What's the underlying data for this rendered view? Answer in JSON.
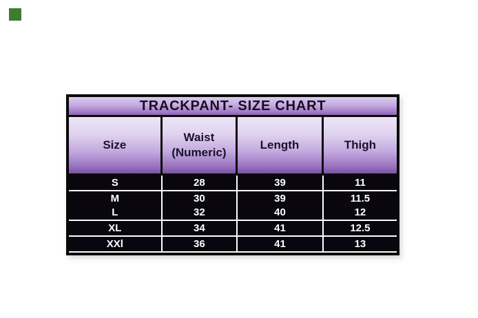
{
  "page": {
    "background_color": "#ffffff",
    "green_square_color": "#3e7c31"
  },
  "table": {
    "title": "TRACKPANT- SIZE CHART",
    "header": {
      "size": "Size",
      "waist_line1": "Waist",
      "waist_line2": "(Numeric)",
      "length": "Length",
      "thigh": "Thigh"
    },
    "rows": [
      {
        "size": "S",
        "waist": "28",
        "length": "39",
        "thigh": "11"
      },
      {
        "size": "M",
        "waist": "30",
        "length": "39",
        "thigh": "11.5"
      },
      {
        "size": "L",
        "waist": "32",
        "length": "40",
        "thigh": "12"
      },
      {
        "size": "XL",
        "waist": "34",
        "length": "41",
        "thigh": "12.5"
      },
      {
        "size": "XXl",
        "waist": "36",
        "length": "41",
        "thigh": "13"
      }
    ],
    "colors": {
      "title_gradient_top": "#d9cbec",
      "title_gradient_bottom": "#8d66b3",
      "header_gradient_top": "#ece5f6",
      "header_gradient_bottom": "#7a53a0",
      "row_background": "#0a0610",
      "row_text": "#ffffff",
      "header_text": "#1b1128",
      "border": "#0a0708",
      "grid_line": "#ffffff"
    }
  },
  "chart_data": {
    "type": "table",
    "title": "TRACKPANT- SIZE CHART",
    "columns": [
      "Size",
      "Waist (Numeric)",
      "Length",
      "Thigh"
    ],
    "rows": [
      [
        "S",
        28,
        39,
        11
      ],
      [
        "M",
        30,
        39,
        11.5
      ],
      [
        "L",
        32,
        40,
        12
      ],
      [
        "XL",
        34,
        41,
        12.5
      ],
      [
        "XXl",
        36,
        41,
        13
      ]
    ]
  }
}
